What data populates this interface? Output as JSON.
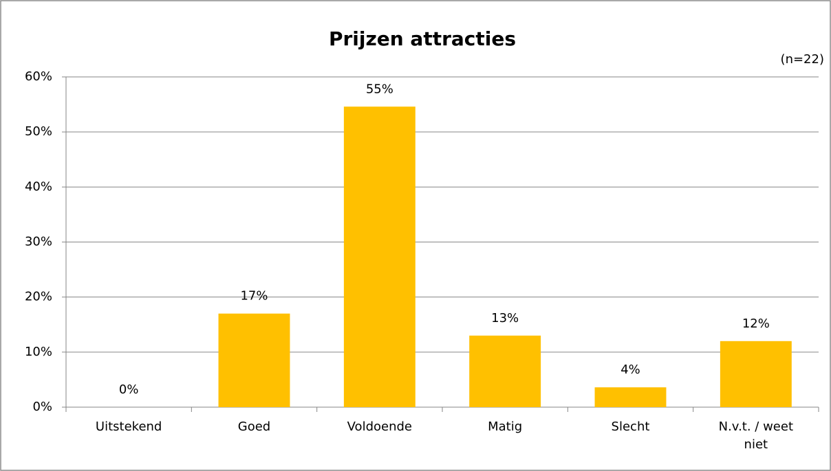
{
  "chart_data": {
    "type": "bar",
    "title": "Prijzen attracties",
    "annotation": "(n=22)",
    "categories": [
      "Uitstekend",
      "Goed",
      "Voldoende",
      "Matig",
      "Slecht",
      "N.v.t. / weet niet"
    ],
    "values": [
      0,
      17,
      54.6,
      13,
      3.6,
      12
    ],
    "value_labels": [
      "0%",
      "17%",
      "55%",
      "13%",
      "4%",
      "12%"
    ],
    "color": "#ffc000",
    "ylim": [
      0,
      60
    ],
    "yticks": [
      {
        "value": 0,
        "label": "0%"
      },
      {
        "value": 10,
        "label": "10%"
      },
      {
        "value": 20,
        "label": "20%"
      },
      {
        "value": 30,
        "label": "30%"
      },
      {
        "value": 40,
        "label": "40%"
      },
      {
        "value": 50,
        "label": "50%"
      },
      {
        "value": 60,
        "label": "60%"
      }
    ],
    "grid": true
  }
}
